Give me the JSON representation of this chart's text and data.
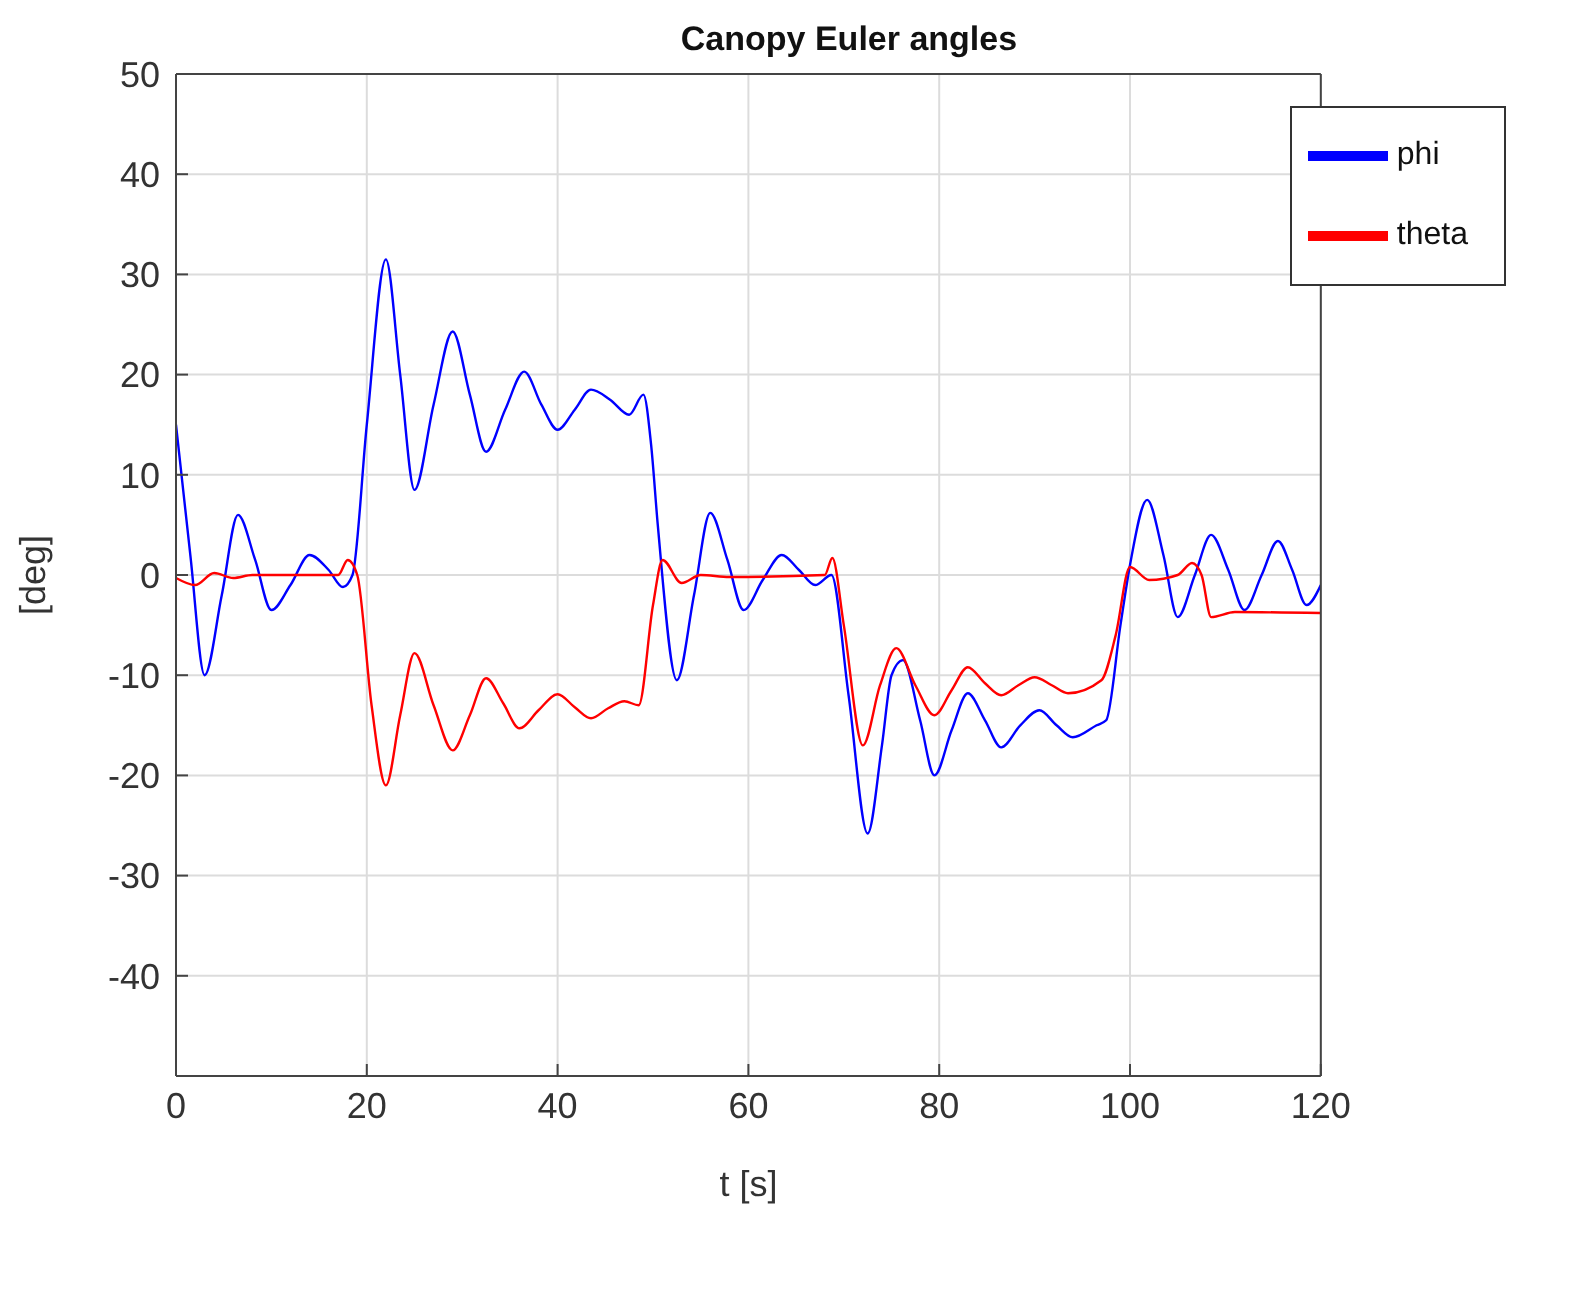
{
  "chart_data": {
    "type": "line",
    "title": "Canopy Euler angles",
    "xlabel": "t [s]",
    "ylabel": "[deg]",
    "xlim": [
      0,
      120
    ],
    "xticks": [
      0,
      20,
      40,
      60,
      80,
      100,
      120
    ],
    "ylim": [
      -50,
      50
    ],
    "yticks": [
      -40,
      -30,
      -20,
      -10,
      0,
      10,
      20,
      30,
      40,
      50
    ],
    "grid": true,
    "legend": "top right",
    "series": [
      {
        "name": "phi",
        "color": "#0000ff",
        "x": [
          0,
          1.5,
          3,
          4.8,
          6.5,
          8.3,
          10,
          12,
          14,
          16,
          17.5,
          18.5,
          20,
          22,
          23.5,
          25,
          27,
          29,
          30.8,
          32.5,
          34.5,
          36.5,
          38.3,
          40,
          41.8,
          43.5,
          45.5,
          47.5,
          49,
          49.8,
          50.5,
          52.5,
          54.3,
          56,
          57.8,
          59.5,
          61.5,
          63.5,
          65.3,
          67,
          68.7,
          70.5,
          72.5,
          74,
          75,
          76.2,
          78,
          79.5,
          81.3,
          83,
          84.8,
          86.5,
          88.5,
          90.5,
          92.3,
          94,
          96.5,
          97.5,
          99,
          100,
          101.8,
          103.5,
          105,
          106.8,
          108.5,
          110.3,
          112,
          113.8,
          115.5,
          117,
          118.5,
          120
        ],
        "values": [
          15,
          2,
          -10,
          -2,
          6,
          1.5,
          -3.5,
          -1,
          2,
          0.5,
          -1.2,
          0,
          15,
          31.5,
          20,
          8.5,
          17,
          24.3,
          18,
          12.3,
          16.5,
          20.3,
          17,
          14.5,
          16.5,
          18.5,
          17.5,
          16,
          18,
          13,
          5,
          -10.5,
          -2,
          6.2,
          1.5,
          -3.5,
          -0.5,
          2,
          0.5,
          -1,
          0,
          -12,
          -25.8,
          -17,
          -10,
          -8.5,
          -14.5,
          -20,
          -15.5,
          -11.8,
          -14.5,
          -17.2,
          -15,
          -13.5,
          -15,
          -16.2,
          -15,
          -14.5,
          -5,
          1,
          7.5,
          2,
          -4.2,
          0,
          4,
          0.5,
          -3.5,
          0,
          3.4,
          0.5,
          -3,
          -1
        ]
      },
      {
        "name": "theta",
        "color": "#ff0000",
        "x": [
          0,
          2,
          4,
          6,
          8,
          17,
          18,
          19,
          20.5,
          22,
          23.5,
          25,
          27,
          29,
          30.8,
          32.5,
          34.3,
          36,
          38,
          40,
          41.8,
          43.5,
          45.3,
          47,
          48.5,
          50,
          51,
          53,
          55,
          58,
          68,
          68.8,
          70,
          72,
          73.8,
          75.5,
          77.5,
          79.5,
          81.3,
          83,
          84.8,
          86.5,
          88.3,
          90,
          91.8,
          93.5,
          97,
          98.5,
          100,
          102,
          105,
          106.5,
          107.5,
          108.5,
          111,
          120
        ],
        "values": [
          -0.3,
          -1,
          0.2,
          -0.3,
          0,
          0,
          1.5,
          0,
          -13,
          -21,
          -14,
          -7.8,
          -13,
          -17.5,
          -14,
          -10.3,
          -12.8,
          -15.3,
          -13.5,
          -11.9,
          -13.2,
          -14.3,
          -13.3,
          -12.6,
          -13,
          -3,
          1.5,
          -0.8,
          0,
          -0.2,
          0,
          1.7,
          -5,
          -17,
          -11,
          -7.3,
          -11,
          -14,
          -11.5,
          -9.2,
          -10.8,
          -12,
          -11,
          -10.2,
          -11,
          -11.8,
          -10.5,
          -6,
          0.8,
          -0.5,
          0,
          1.2,
          0,
          -4.2,
          -3.7,
          -3.8
        ]
      }
    ]
  }
}
